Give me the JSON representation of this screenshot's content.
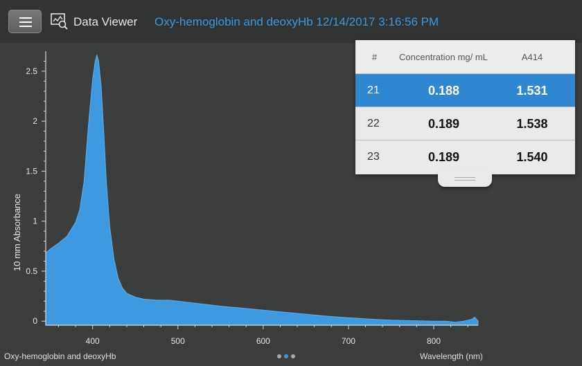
{
  "header": {
    "menu_icon": "hamburger-menu-icon",
    "viewer_icon": "data-viewer-icon",
    "viewer_label": "Data Viewer",
    "run_title": "Oxy-hemoglobin and deoxyHb 12/14/2017 3:16:56 PM"
  },
  "table": {
    "columns": [
      "#",
      "Concentration mg/ mL",
      "A414"
    ],
    "rows": [
      {
        "num": "21",
        "conc": "0.188",
        "abs": "1.531",
        "selected": true
      },
      {
        "num": "22",
        "conc": "0.189",
        "abs": "1.538",
        "selected": false
      },
      {
        "num": "23",
        "conc": "0.189",
        "abs": "1.540",
        "selected": false
      }
    ]
  },
  "footer": {
    "sample_name": "Oxy-hemoglobin and deoxyHb",
    "pages": 3,
    "active_page": 1
  },
  "chart_data": {
    "type": "area",
    "xlabel": "Wavelength (nm)",
    "ylabel": "10 mm Absorbance",
    "xlim": [
      345,
      852
    ],
    "ylim": [
      -0.04,
      2.7
    ],
    "xticks": [
      400,
      500,
      600,
      700,
      800
    ],
    "yticks": [
      0,
      0.5,
      1,
      1.5,
      2,
      2.5
    ],
    "xtick_labels": [
      "400",
      "500",
      "600",
      "700",
      "800"
    ],
    "ytick_labels": [
      "0",
      "0.5",
      "1",
      "1.5",
      "2",
      "2.5"
    ],
    "color": "#3d9ae0",
    "grid": false,
    "x": [
      345,
      350,
      360,
      370,
      380,
      385,
      390,
      395,
      400,
      403,
      405,
      407,
      410,
      413,
      416,
      420,
      425,
      430,
      435,
      440,
      450,
      460,
      475,
      490,
      510,
      530,
      550,
      575,
      600,
      625,
      650,
      675,
      700,
      725,
      750,
      775,
      800,
      815,
      825,
      835,
      845,
      848,
      852
    ],
    "values": [
      0.68,
      0.72,
      0.78,
      0.85,
      0.99,
      1.12,
      1.4,
      1.95,
      2.42,
      2.6,
      2.66,
      2.6,
      2.35,
      1.9,
      1.4,
      0.95,
      0.62,
      0.43,
      0.33,
      0.28,
      0.24,
      0.22,
      0.21,
      0.21,
      0.19,
      0.17,
      0.15,
      0.13,
      0.11,
      0.09,
      0.07,
      0.05,
      0.035,
      0.02,
      0.01,
      0.005,
      0.0,
      0.0,
      -0.01,
      0.0,
      0.02,
      0.04,
      0.0
    ]
  }
}
